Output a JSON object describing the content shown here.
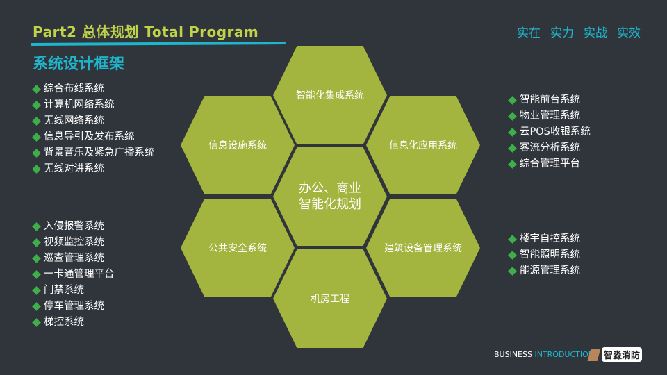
{
  "header": {
    "title": "Part2  总体规划  Total Program",
    "subtitle": "系统设计框架",
    "slogan": [
      "实在",
      "实力",
      "实战",
      "实效"
    ]
  },
  "colors": {
    "background": "#30343b",
    "hexagon": "#a3b53e",
    "accent": "#1fb6cc",
    "title": "#bfd34a",
    "bullet": "#3dae4a"
  },
  "hexagons": {
    "top": "智能化集成系统",
    "upper_left": "信息设施系统",
    "upper_right": "信息化应用系统",
    "center_line1": "办公、商业",
    "center_line2": "智能化规划",
    "lower_left": "公共安全系统",
    "lower_right": "建筑设备管理系统",
    "bottom": "机房工程"
  },
  "lists": {
    "left_top": [
      "综合布线系统",
      "计算机网络系统",
      "无线网络系统",
      "信息导引及发布系统",
      "背景音乐及紧急广播系统",
      "无线对讲系统"
    ],
    "left_bottom": [
      "入侵报警系统",
      "视频监控系统",
      "巡查管理系统",
      "一卡通管理平台",
      "门禁系统",
      "停车管理系统",
      "梯控系统"
    ],
    "right_top": [
      "智能前台系统",
      "物业管理系统",
      "云POS收银系统",
      "客流分析系统",
      "综合管理平台"
    ],
    "right_bottom": [
      "楼宇自控系统",
      "智能照明系统",
      "能源管理系统"
    ]
  },
  "footer": {
    "business": "BUSINESS",
    "introduction": " INTRODUCTION",
    "logo_text": "智淼消防"
  }
}
